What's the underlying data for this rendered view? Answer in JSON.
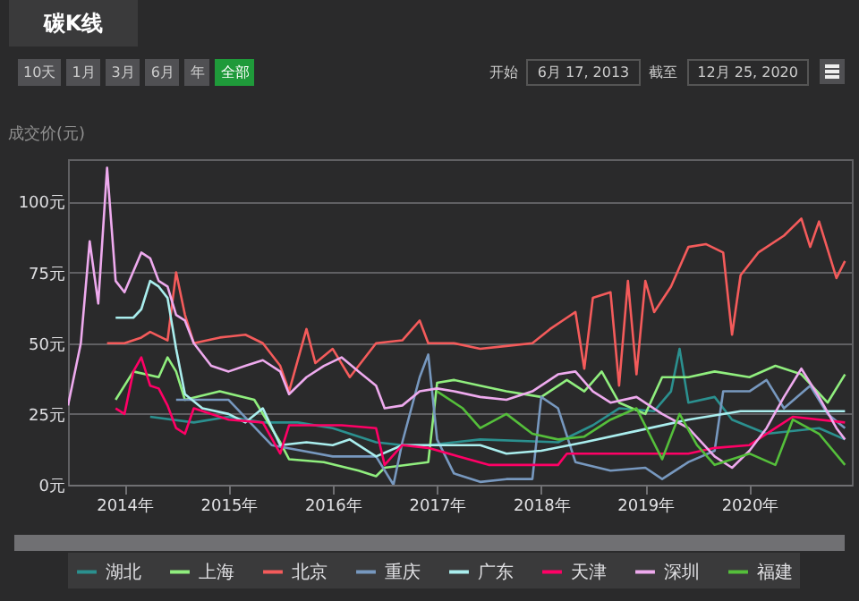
{
  "chart_data": {
    "type": "line",
    "title": "碳K线",
    "ylabel": "成交价(元)",
    "annotations": [
      "10天",
      "1月",
      "3月",
      "6月",
      "年",
      "全部",
      "开始",
      "6月 17, 2013",
      "截至",
      "12月 25, 2020"
    ],
    "xlim": [
      "2013-06-17",
      "2020-12-25"
    ],
    "xticks": [
      {
        "value": "2014",
        "label": "2014年"
      },
      {
        "value": "2015",
        "label": "2015年"
      },
      {
        "value": "2016",
        "label": "2016年"
      },
      {
        "value": "2017",
        "label": "2017年"
      },
      {
        "value": "2018",
        "label": "2018年"
      },
      {
        "value": "2019",
        "label": "2019年"
      },
      {
        "value": "2020",
        "label": "2020年"
      }
    ],
    "ylim": [
      0,
      115
    ],
    "yticks": [
      {
        "value": 0,
        "label": "0元"
      },
      {
        "value": 25,
        "label": "25元"
      },
      {
        "value": 50,
        "label": "50元"
      },
      {
        "value": 75,
        "label": "75元"
      },
      {
        "value": 100,
        "label": "100元"
      }
    ],
    "grid": "y",
    "legend": "bottom",
    "marker": "none",
    "line_style": "solid",
    "series": [
      {
        "name": "湖北",
        "color": "#2b908f",
        "x": [
          "2014-04",
          "2014-09",
          "2015-01",
          "2015-05",
          "2015-09",
          "2016-01",
          "2016-06",
          "2016-09",
          "2016-12",
          "2017-06",
          "2018-03",
          "2018-07",
          "2018-10",
          "2019-02",
          "2019-04",
          "2019-05",
          "2019-06",
          "2019-09",
          "2019-11",
          "2020-03",
          "2020-09",
          "2020-12"
        ],
        "values": [
          24,
          22,
          24,
          22,
          22,
          20,
          15,
          14,
          14,
          16,
          15,
          21,
          27,
          26,
          33,
          48,
          29,
          31,
          23,
          18,
          20,
          16
        ]
      },
      {
        "name": "上海",
        "color": "#90ee7e",
        "x": [
          "2013-12",
          "2014-02",
          "2014-05",
          "2014-06",
          "2014-07",
          "2014-08",
          "2014-12",
          "2015-04",
          "2015-07",
          "2015-08",
          "2015-12",
          "2016-04",
          "2016-06",
          "2016-07",
          "2016-12",
          "2017-01",
          "2017-03",
          "2017-06",
          "2017-09",
          "2018-01",
          "2018-04",
          "2018-06",
          "2018-08",
          "2018-10",
          "2019-01",
          "2019-03",
          "2019-06",
          "2019-09",
          "2020-01",
          "2020-04",
          "2020-07",
          "2020-10",
          "2020-12"
        ],
        "values": [
          30,
          40,
          38,
          45,
          40,
          30,
          33,
          30,
          15,
          9,
          8,
          5,
          3,
          6,
          8,
          36,
          37,
          35,
          33,
          31,
          37,
          33,
          40,
          29,
          25,
          38,
          38,
          40,
          38,
          42,
          39,
          29,
          39
        ]
      },
      {
        "name": "北京",
        "color": "#f45b5b",
        "x": [
          "2013-11",
          "2014-01",
          "2014-03",
          "2014-04",
          "2014-06",
          "2014-07",
          "2014-08",
          "2014-09",
          "2014-12",
          "2015-03",
          "2015-05",
          "2015-07",
          "2015-08",
          "2015-10",
          "2015-11",
          "2016-01",
          "2016-03",
          "2016-06",
          "2016-09",
          "2016-11",
          "2016-12",
          "2017-03",
          "2017-06",
          "2017-09",
          "2017-12",
          "2018-02",
          "2018-04",
          "2018-05",
          "2018-06",
          "2018-07",
          "2018-09",
          "2018-10",
          "2018-11",
          "2018-12",
          "2019-01",
          "2019-02",
          "2019-04",
          "2019-06",
          "2019-08",
          "2019-10",
          "2019-11",
          "2019-12",
          "2020-02",
          "2020-05",
          "2020-07",
          "2020-08",
          "2020-09",
          "2020-11",
          "2020-12"
        ],
        "values": [
          50,
          50,
          52,
          54,
          51,
          75,
          60,
          50,
          52,
          53,
          50,
          42,
          33,
          55,
          43,
          48,
          38,
          50,
          51,
          58,
          50,
          50,
          48,
          49,
          50,
          55,
          59,
          61,
          41,
          66,
          68,
          35,
          72,
          39,
          72,
          61,
          70,
          84,
          85,
          82,
          53,
          74,
          82,
          88,
          94,
          84,
          93,
          73,
          79
        ]
      },
      {
        "name": "重庆",
        "color": "#7798bf",
        "x": [
          "2014-07",
          "2015-01",
          "2015-06",
          "2016-01",
          "2016-06",
          "2016-08",
          "2016-09",
          "2016-11",
          "2016-12",
          "2017-01",
          "2017-03",
          "2017-06",
          "2017-09",
          "2017-12",
          "2018-01",
          "2018-03",
          "2018-05",
          "2018-09",
          "2019-01",
          "2019-03",
          "2019-06",
          "2019-09",
          "2019-10",
          "2020-01",
          "2020-03",
          "2020-05",
          "2020-08",
          "2020-10",
          "2020-12"
        ],
        "values": [
          30,
          30,
          14,
          10,
          10,
          0,
          15,
          38,
          46,
          16,
          4,
          1,
          2,
          2,
          31,
          27,
          8,
          5,
          6,
          2,
          8,
          12,
          33,
          33,
          37,
          27,
          35,
          25,
          20
        ]
      },
      {
        "name": "广东",
        "color": "#aaeeee",
        "x": [
          "2013-12",
          "2014-02",
          "2014-03",
          "2014-04",
          "2014-05",
          "2014-06",
          "2014-07",
          "2014-08",
          "2014-10",
          "2015-01",
          "2015-03",
          "2015-05",
          "2015-07",
          "2015-10",
          "2016-01",
          "2016-03",
          "2016-06",
          "2016-09",
          "2016-12",
          "2017-06",
          "2017-09",
          "2018-01",
          "2018-06",
          "2018-12",
          "2019-06",
          "2019-12",
          "2020-06",
          "2020-12"
        ],
        "values": [
          59,
          59,
          62,
          72,
          70,
          66,
          48,
          32,
          27,
          25,
          22,
          27,
          14,
          15,
          14,
          16,
          10,
          14,
          14,
          14,
          11,
          12,
          15,
          19,
          23,
          26,
          26,
          26
        ]
      },
      {
        "name": "天津",
        "color": "#ff0066",
        "x": [
          "2013-12",
          "2014-01",
          "2014-02",
          "2014-03",
          "2014-04",
          "2014-05",
          "2014-06",
          "2014-07",
          "2014-08",
          "2014-09",
          "2015-01",
          "2015-05",
          "2015-07",
          "2015-08",
          "2016-02",
          "2016-06",
          "2016-07",
          "2016-09",
          "2016-12",
          "2017-07",
          "2018-03",
          "2018-04",
          "2019-06",
          "2019-09",
          "2020-01",
          "2020-04",
          "2020-06",
          "2020-12"
        ],
        "values": [
          27,
          25,
          40,
          45,
          35,
          34,
          28,
          20,
          18,
          27,
          23,
          22,
          11,
          21,
          21,
          20,
          7,
          14,
          13,
          7,
          7,
          11,
          11,
          13,
          14,
          20,
          24,
          22
        ]
      },
      {
        "name": "深圳",
        "color": "#eeaaee",
        "x": [
          "2013-06-17",
          "2013-08",
          "2013-09",
          "2013-10",
          "2013-11",
          "2013-12",
          "2014-01",
          "2014-03",
          "2014-04",
          "2014-05",
          "2014-06",
          "2014-07",
          "2014-08",
          "2014-09",
          "2014-11",
          "2015-01",
          "2015-03",
          "2015-05",
          "2015-07",
          "2015-08",
          "2015-10",
          "2015-12",
          "2016-02",
          "2016-04",
          "2016-06",
          "2016-07",
          "2016-09",
          "2016-11",
          "2017-01",
          "2017-03",
          "2017-06",
          "2017-09",
          "2017-12",
          "2018-03",
          "2018-05",
          "2018-07",
          "2018-09",
          "2018-12",
          "2019-03",
          "2019-06",
          "2019-09",
          "2019-11",
          "2020-01",
          "2020-03",
          "2020-05",
          "2020-07",
          "2020-09",
          "2020-11",
          "2020-12"
        ],
        "values": [
          28,
          50,
          86,
          64,
          112,
          72,
          68,
          82,
          80,
          72,
          70,
          60,
          58,
          50,
          42,
          40,
          42,
          44,
          40,
          32,
          38,
          42,
          45,
          40,
          35,
          27,
          28,
          33,
          34,
          33,
          31,
          30,
          33,
          39,
          40,
          33,
          29,
          31,
          25,
          20,
          10,
          6,
          12,
          20,
          31,
          41,
          31,
          20,
          16
        ]
      },
      {
        "name": "福建",
        "color": "#55bf3b",
        "x": [
          "2017-01",
          "2017-04",
          "2017-06",
          "2017-09",
          "2017-12",
          "2018-03",
          "2018-06",
          "2018-09",
          "2018-12",
          "2019-03",
          "2019-05",
          "2019-07",
          "2019-09",
          "2020-01",
          "2020-04",
          "2020-06",
          "2020-09",
          "2020-12"
        ],
        "values": [
          33,
          27,
          20,
          25,
          18,
          16,
          17,
          23,
          27,
          9,
          25,
          14,
          7,
          11,
          7,
          23,
          18,
          7
        ]
      }
    ]
  }
}
